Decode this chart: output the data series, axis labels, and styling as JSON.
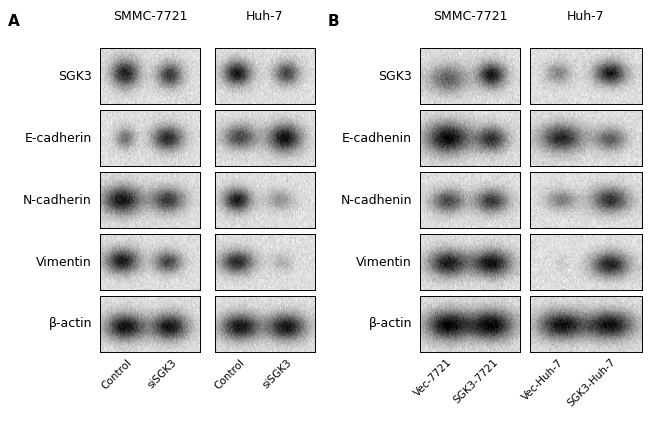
{
  "panel_A_label": "A",
  "panel_B_label": "B",
  "row_labels_A": [
    "SGK3",
    "E-cadherin",
    "N-cadherin",
    "Vimentin",
    "β-actin"
  ],
  "row_labels_B": [
    "SGK3",
    "E-cadhenin",
    "N-cadhenin",
    "Vimentin",
    "β-actin"
  ],
  "cell_lines_A": [
    "SMMC-7721",
    "Huh-7"
  ],
  "cell_lines_B": [
    "SMMC-7721",
    "Huh-7"
  ],
  "xtick_labels_A": [
    "Control",
    "siSGK3",
    "Control",
    "siSGK3"
  ],
  "xtick_labels_B": [
    "Vec-7721",
    "SGK3-7721",
    "Vec-Huh-7",
    "SGK3-Huh-7"
  ],
  "bg_color": "#ffffff"
}
